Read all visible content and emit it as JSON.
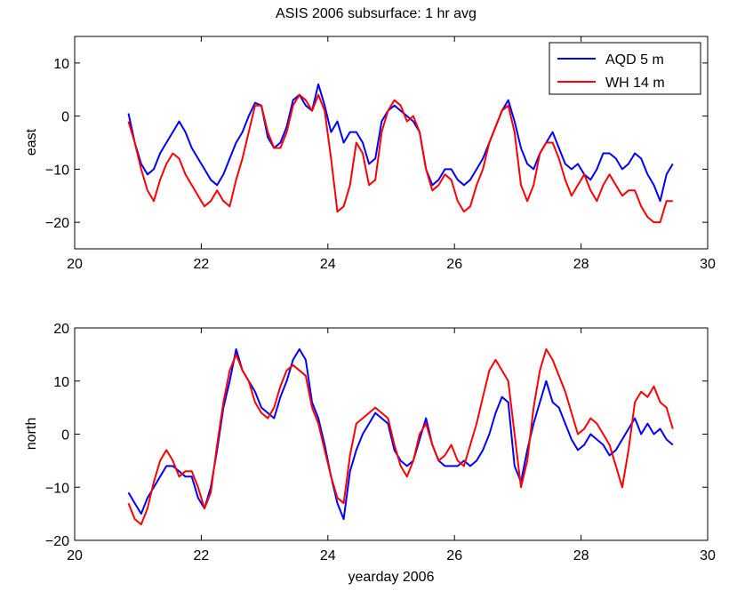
{
  "figure": {
    "title": "ASIS 2006 subsurface: 1 hr avg"
  },
  "colors": {
    "aqd": "#0000ff",
    "wh": "#ff0000",
    "axis": "#000000",
    "background": "#ffffff"
  },
  "chart_data": [
    {
      "type": "line",
      "title": "ASIS 2006 subsurface: 1 hr avg",
      "ylabel": "east",
      "xlabel": "",
      "xlim": [
        20,
        30
      ],
      "ylim": [
        -25,
        15
      ],
      "xticks": [
        20,
        22,
        24,
        26,
        28,
        30
      ],
      "yticks": [
        -20,
        -10,
        0,
        10
      ],
      "grid": false,
      "legend": {
        "placement": "top-right"
      },
      "series": [
        {
          "name": "AQD 5 m",
          "color": "#0000ff",
          "x": [
            20.85,
            20.95,
            21.05,
            21.15,
            21.25,
            21.35,
            21.45,
            21.55,
            21.65,
            21.75,
            21.85,
            21.95,
            22.05,
            22.15,
            22.25,
            22.35,
            22.45,
            22.55,
            22.65,
            22.75,
            22.85,
            22.95,
            23.05,
            23.15,
            23.25,
            23.35,
            23.45,
            23.55,
            23.65,
            23.75,
            23.85,
            23.95,
            24.05,
            24.15,
            24.25,
            24.35,
            24.45,
            24.55,
            24.65,
            24.75,
            24.85,
            24.95,
            25.05,
            25.15,
            25.25,
            25.35,
            25.45,
            25.55,
            25.65,
            25.75,
            25.85,
            25.95,
            26.05,
            26.15,
            26.25,
            26.35,
            26.45,
            26.55,
            26.65,
            26.75,
            26.85,
            26.95,
            27.05,
            27.15,
            27.25,
            27.35,
            27.45,
            27.55,
            27.65,
            27.75,
            27.85,
            27.95,
            28.05,
            28.15,
            28.25,
            28.35,
            28.45,
            28.55,
            28.65,
            28.75,
            28.85,
            28.95,
            29.05,
            29.15,
            29.25,
            29.35,
            29.45
          ],
          "y": [
            0.5,
            -5,
            -9,
            -11,
            -10,
            -7,
            -5,
            -3,
            -1,
            -3,
            -6,
            -8,
            -10,
            -12,
            -13,
            -11,
            -8,
            -5,
            -3,
            0,
            2.5,
            2,
            -4,
            -6,
            -5,
            -2,
            3,
            4,
            2,
            1,
            6,
            2,
            -3,
            -1,
            -5,
            -3,
            -3,
            -5,
            -9,
            -8,
            -1,
            1,
            2,
            1,
            0,
            -1,
            -3,
            -10,
            -13,
            -12,
            -10,
            -10,
            -12,
            -13,
            -12,
            -10,
            -8,
            -5,
            -2,
            1,
            3,
            -1,
            -6,
            -9,
            -10,
            -7,
            -5,
            -3,
            -6,
            -9,
            -10,
            -9,
            -11,
            -12,
            -10,
            -7,
            -7,
            -8,
            -10,
            -9,
            -7,
            -8,
            -11,
            -13,
            -16,
            -11,
            -9
          ]
        },
        {
          "name": "WH 14 m",
          "color": "#ff0000",
          "x": [
            20.85,
            20.95,
            21.05,
            21.15,
            21.25,
            21.35,
            21.45,
            21.55,
            21.65,
            21.75,
            21.85,
            21.95,
            22.05,
            22.15,
            22.25,
            22.35,
            22.45,
            22.55,
            22.65,
            22.75,
            22.85,
            22.95,
            23.05,
            23.15,
            23.25,
            23.35,
            23.45,
            23.55,
            23.65,
            23.75,
            23.85,
            23.95,
            24.05,
            24.15,
            24.25,
            24.35,
            24.45,
            24.55,
            24.65,
            24.75,
            24.85,
            24.95,
            25.05,
            25.15,
            25.25,
            25.35,
            25.45,
            25.55,
            25.65,
            25.75,
            25.85,
            25.95,
            26.05,
            26.15,
            26.25,
            26.35,
            26.45,
            26.55,
            26.65,
            26.75,
            26.85,
            26.95,
            27.05,
            27.15,
            27.25,
            27.35,
            27.45,
            27.55,
            27.65,
            27.75,
            27.85,
            27.95,
            28.05,
            28.15,
            28.25,
            28.35,
            28.45,
            28.55,
            28.65,
            28.75,
            28.85,
            28.95,
            29.05,
            29.15,
            29.25,
            29.35,
            29.45
          ],
          "y": [
            -1,
            -5,
            -10,
            -14,
            -16,
            -12,
            -9,
            -7,
            -8,
            -11,
            -13,
            -15,
            -17,
            -16,
            -14,
            -16,
            -17,
            -12,
            -8,
            -3,
            2,
            2,
            -3,
            -6,
            -6,
            -3,
            2,
            4,
            3,
            1,
            4,
            1,
            -8,
            -18,
            -17,
            -13,
            -5,
            -7,
            -13,
            -12,
            -3,
            1,
            3,
            2,
            -1,
            0,
            -3,
            -10,
            -14,
            -13,
            -11,
            -12,
            -16,
            -18,
            -17,
            -13,
            -10,
            -5,
            -2,
            1,
            2,
            -3,
            -13,
            -16,
            -13,
            -7,
            -5,
            -5,
            -8,
            -12,
            -15,
            -13,
            -11,
            -14,
            -16,
            -13,
            -11,
            -13,
            -15,
            -14,
            -14,
            -17,
            -19,
            -20,
            -20,
            -16,
            -16
          ]
        }
      ]
    },
    {
      "type": "line",
      "title": "",
      "ylabel": "north",
      "xlabel": "yearday 2006",
      "xlim": [
        20,
        30
      ],
      "ylim": [
        -20,
        20
      ],
      "xticks": [
        20,
        22,
        24,
        26,
        28,
        30
      ],
      "yticks": [
        -20,
        -10,
        0,
        10,
        20
      ],
      "grid": false,
      "legend": null,
      "series": [
        {
          "name": "AQD 5 m",
          "color": "#0000ff",
          "x": [
            20.85,
            20.95,
            21.05,
            21.15,
            21.25,
            21.35,
            21.45,
            21.55,
            21.65,
            21.75,
            21.85,
            21.95,
            22.05,
            22.15,
            22.25,
            22.35,
            22.45,
            22.55,
            22.65,
            22.75,
            22.85,
            22.95,
            23.05,
            23.15,
            23.25,
            23.35,
            23.45,
            23.55,
            23.65,
            23.75,
            23.85,
            23.95,
            24.05,
            24.15,
            24.25,
            24.35,
            24.45,
            24.55,
            24.65,
            24.75,
            24.85,
            24.95,
            25.05,
            25.15,
            25.25,
            25.35,
            25.45,
            25.55,
            25.65,
            25.75,
            25.85,
            25.95,
            26.05,
            26.15,
            26.25,
            26.35,
            26.45,
            26.55,
            26.65,
            26.75,
            26.85,
            26.95,
            27.05,
            27.15,
            27.25,
            27.35,
            27.45,
            27.55,
            27.65,
            27.75,
            27.85,
            27.95,
            28.05,
            28.15,
            28.25,
            28.35,
            28.45,
            28.55,
            28.65,
            28.75,
            28.85,
            28.95,
            29.05,
            29.15,
            29.25,
            29.35,
            29.45
          ],
          "y": [
            -11,
            -13,
            -15,
            -12,
            -10,
            -8,
            -6,
            -6,
            -7,
            -8,
            -8,
            -12,
            -14,
            -10,
            -3,
            5,
            10,
            16,
            12,
            10,
            8,
            5,
            4,
            3,
            7,
            10,
            14,
            16,
            14,
            6,
            3,
            -2,
            -8,
            -13,
            -16,
            -7,
            -3,
            0,
            2,
            4,
            3,
            2,
            -3,
            -5,
            -6,
            -5,
            -1,
            3,
            -2,
            -5,
            -6,
            -6,
            -6,
            -5,
            -6,
            -5,
            -3,
            0,
            4,
            7,
            6,
            -6,
            -9,
            -3,
            2,
            6,
            10,
            6,
            5,
            2,
            -1,
            -3,
            -2,
            0,
            -1,
            -2,
            -4,
            -3,
            -1,
            1,
            3,
            0,
            2,
            0,
            1,
            -1,
            -2
          ]
        },
        {
          "name": "WH 14 m",
          "color": "#ff0000",
          "x": [
            20.85,
            20.95,
            21.05,
            21.15,
            21.25,
            21.35,
            21.45,
            21.55,
            21.65,
            21.75,
            21.85,
            21.95,
            22.05,
            22.15,
            22.25,
            22.35,
            22.45,
            22.55,
            22.65,
            22.75,
            22.85,
            22.95,
            23.05,
            23.15,
            23.25,
            23.35,
            23.45,
            23.55,
            23.65,
            23.75,
            23.85,
            23.95,
            24.05,
            24.15,
            24.25,
            24.35,
            24.45,
            24.55,
            24.65,
            24.75,
            24.85,
            24.95,
            25.05,
            25.15,
            25.25,
            25.35,
            25.45,
            25.55,
            25.65,
            25.75,
            25.85,
            25.95,
            26.05,
            26.15,
            26.25,
            26.35,
            26.45,
            26.55,
            26.65,
            26.75,
            26.85,
            26.95,
            27.05,
            27.15,
            27.25,
            27.35,
            27.45,
            27.55,
            27.65,
            27.75,
            27.85,
            27.95,
            28.05,
            28.15,
            28.25,
            28.35,
            28.45,
            28.55,
            28.65,
            28.75,
            28.85,
            28.95,
            29.05,
            29.15,
            29.25,
            29.35,
            29.45
          ],
          "y": [
            -13,
            -16,
            -17,
            -14,
            -9,
            -5,
            -3,
            -5,
            -8,
            -7,
            -7,
            -10,
            -14,
            -11,
            -2,
            6,
            12,
            15,
            12,
            10,
            6,
            4,
            3,
            5,
            9,
            12,
            13,
            12,
            11,
            5,
            2,
            -3,
            -8,
            -12,
            -13,
            -4,
            2,
            3,
            4,
            5,
            4,
            3,
            -2,
            -6,
            -8,
            -5,
            0,
            2,
            -2,
            -5,
            -4,
            -2,
            -5,
            -6,
            -2,
            2,
            7,
            12,
            14,
            12,
            10,
            0,
            -10,
            -5,
            5,
            12,
            16,
            14,
            11,
            8,
            4,
            0,
            1,
            3,
            2,
            0,
            -2,
            -6,
            -10,
            -3,
            6,
            8,
            7,
            9,
            6,
            5,
            1
          ]
        }
      ]
    }
  ]
}
